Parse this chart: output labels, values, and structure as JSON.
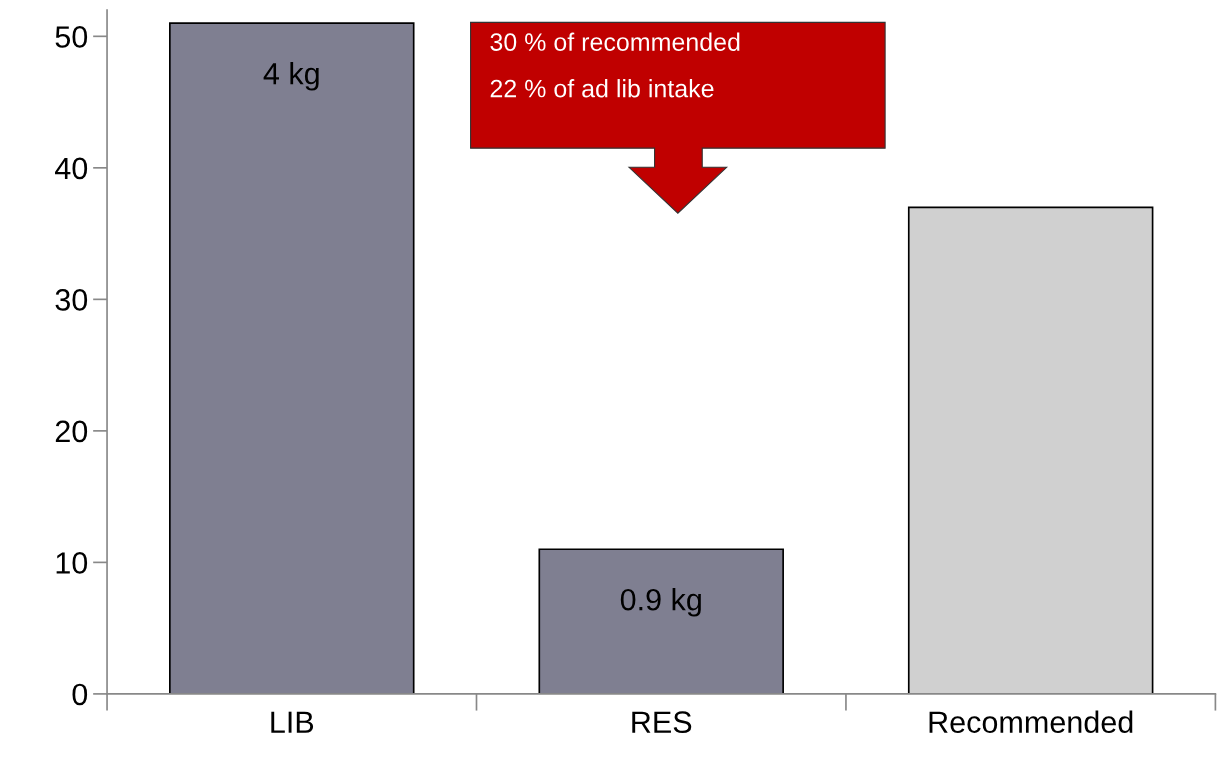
{
  "chart_data": {
    "type": "bar",
    "categories": [
      "LIB",
      "RES",
      "Recommended"
    ],
    "values": [
      51,
      11,
      37
    ],
    "colors": [
      "#7f7f91",
      "#7f7f91",
      "#d0d0d0"
    ],
    "ylim": [
      0,
      52
    ],
    "yticks": [
      0,
      10,
      20,
      30,
      40,
      50
    ],
    "annotations": [
      "30 % of recommended",
      "22 % of ad lib intake",
      {
        "text": "4 kg",
        "x": "LIB",
        "y": 51
      },
      {
        "text": "0.9 kg",
        "x": "RES",
        "y": 11
      }
    ],
    "grid": false,
    "legend": false
  }
}
